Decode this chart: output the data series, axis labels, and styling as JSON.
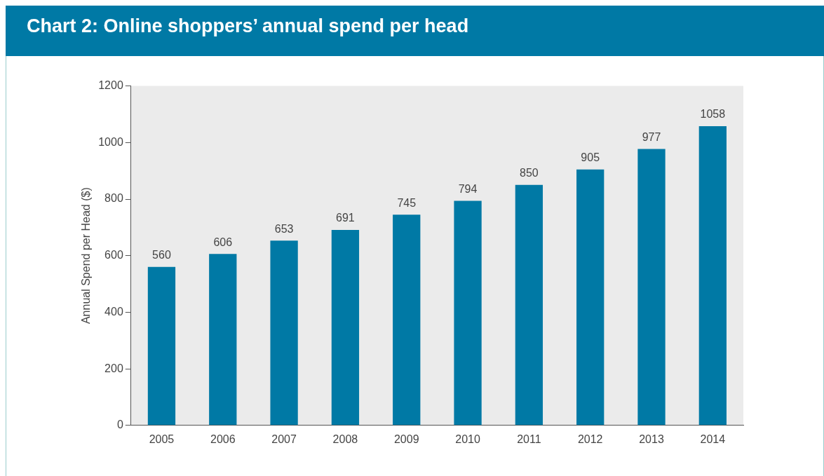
{
  "chart_data": {
    "type": "bar",
    "title": "Chart 2: Online shoppers’ annual spend per head",
    "ylabel": "Annual Spend per Head ($)",
    "categories": [
      "2005",
      "2006",
      "2007",
      "2008",
      "2009",
      "2010",
      "2011",
      "2012",
      "2013",
      "2014"
    ],
    "values": [
      560,
      606,
      653,
      691,
      745,
      794,
      850,
      905,
      977,
      1058
    ],
    "color": "#0079a5",
    "ylim": [
      0,
      1200
    ],
    "yticks": [
      0,
      200,
      400,
      600,
      800,
      1000,
      1200
    ],
    "grid": false,
    "data_labels": true,
    "legend": false
  }
}
